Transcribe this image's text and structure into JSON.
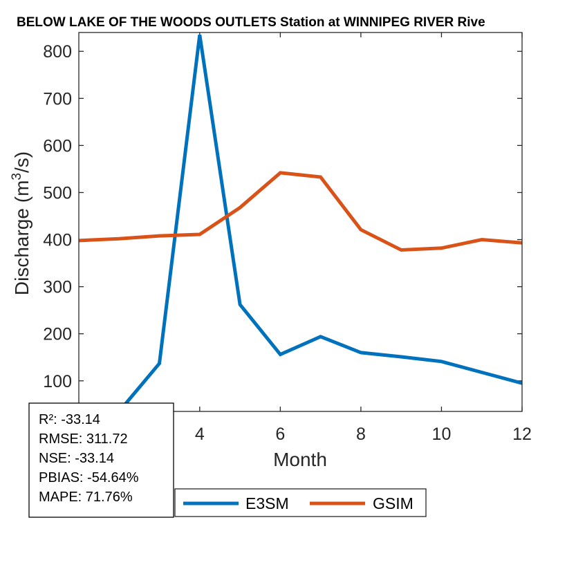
{
  "chart_data": {
    "type": "line",
    "title": "BELOW LAKE OF THE WOODS OUTLETS  Station at  WINNIPEG RIVER  Rive",
    "xlabel": "Month",
    "ylabel": "Discharge (m",
    "ylabel_sup": "3",
    "ylabel_end": "/s)",
    "xlim": [
      1,
      12
    ],
    "ylim": [
      35,
      840
    ],
    "xticks": [
      4,
      6,
      8,
      10,
      12
    ],
    "yticks": [
      100,
      200,
      300,
      400,
      500,
      600,
      700,
      800
    ],
    "grid": false,
    "legend_position": "bottom",
    "series": [
      {
        "name": "E3SM",
        "color": "#0072BD",
        "x": [
          1,
          2,
          3,
          4,
          5,
          6,
          7,
          8,
          9,
          10,
          11,
          12
        ],
        "y": [
          -100,
          35,
          137,
          835,
          262,
          156,
          194,
          160,
          151,
          141,
          118,
          95
        ]
      },
      {
        "name": "GSIM",
        "color": "#D95319",
        "x": [
          1,
          2,
          3,
          4,
          5,
          6,
          7,
          8,
          9,
          10,
          11,
          12
        ],
        "y": [
          398,
          402,
          408,
          411,
          468,
          542,
          533,
          421,
          378,
          382,
          400,
          393
        ]
      }
    ],
    "stats": [
      "R²: -33.14",
      "RMSE: 311.72",
      "NSE: -33.14",
      "PBIAS: -54.64%",
      "MAPE: 71.76%"
    ]
  }
}
